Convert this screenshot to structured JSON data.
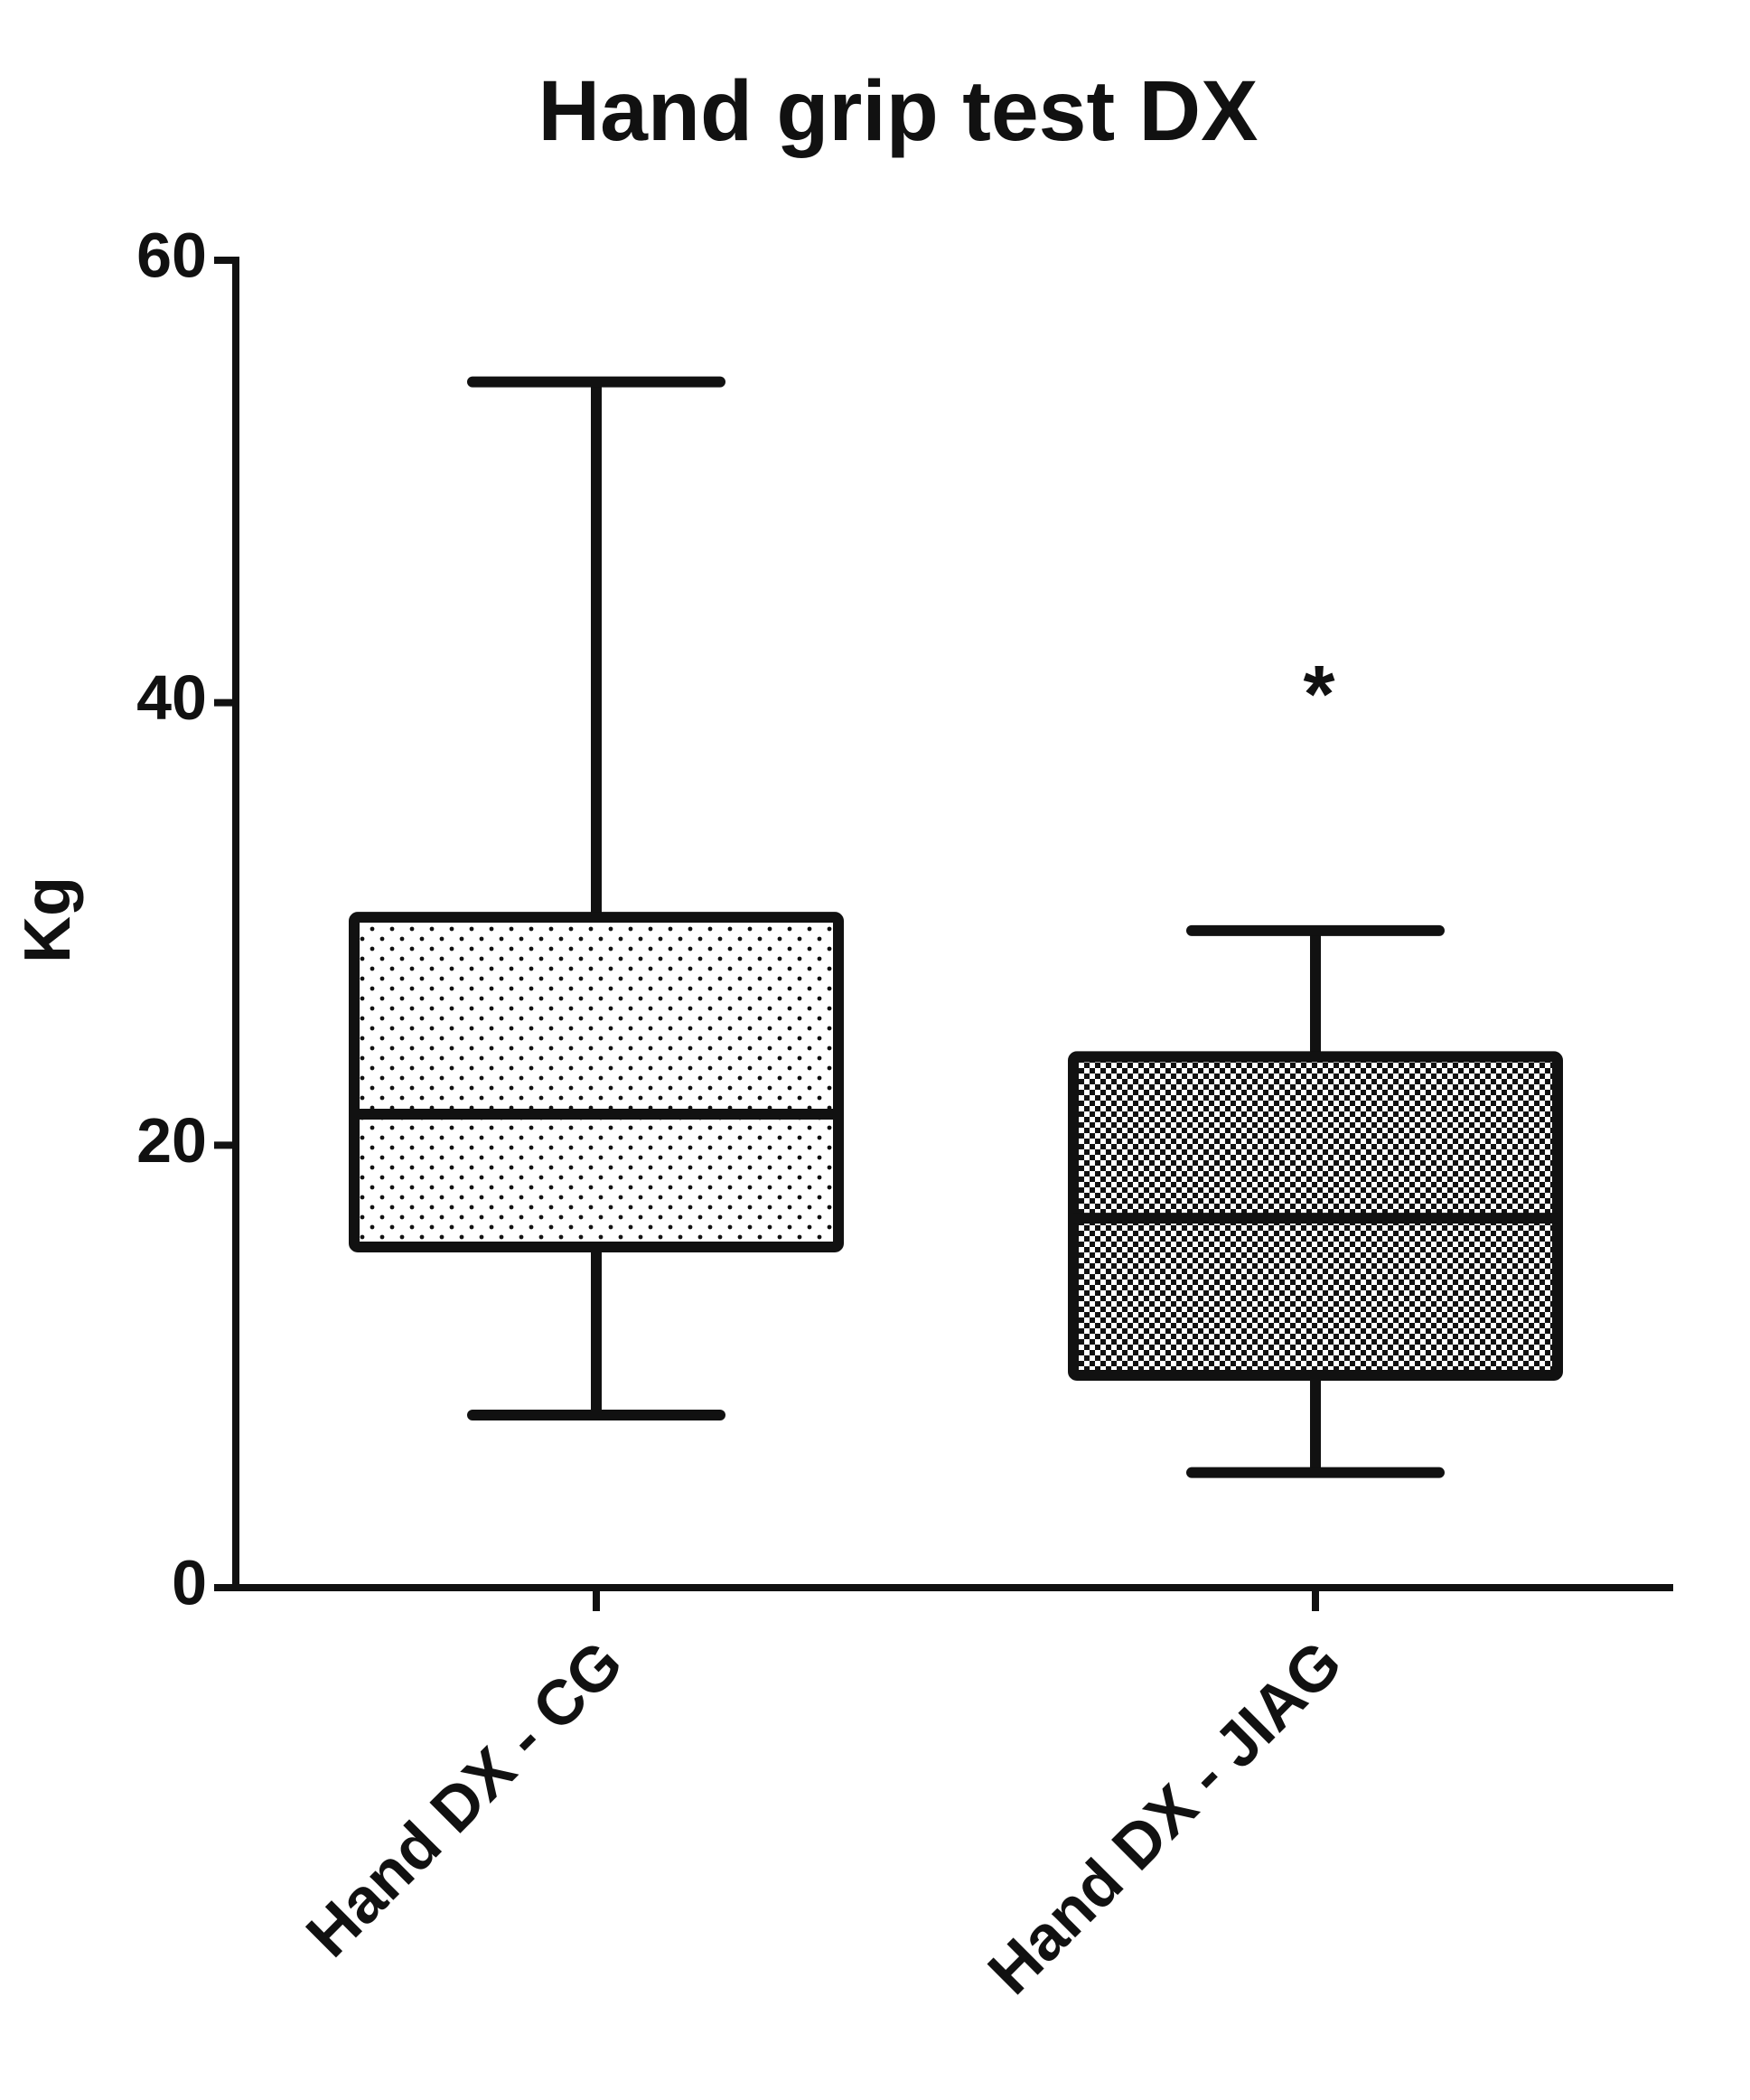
{
  "chart_data": {
    "type": "box",
    "title": "Hand grip test DX",
    "y_label": "Kg",
    "categories": [
      "Hand DX - CG",
      "Hand DX - JIAG"
    ],
    "boxes": [
      {
        "min": 7.8,
        "q1": 15.4,
        "median": 21.4,
        "q3": 30.3,
        "max": 54.5,
        "fill": "dots"
      },
      {
        "min": 5.2,
        "q1": 9.6,
        "median": 16.7,
        "q3": 24.0,
        "max": 29.7,
        "fill": "checker"
      }
    ],
    "annotation": "*",
    "color": "#111111",
    "ylim": [
      0,
      60
    ],
    "yticks": [
      0,
      20,
      40,
      60
    ],
    "grid": false
  }
}
